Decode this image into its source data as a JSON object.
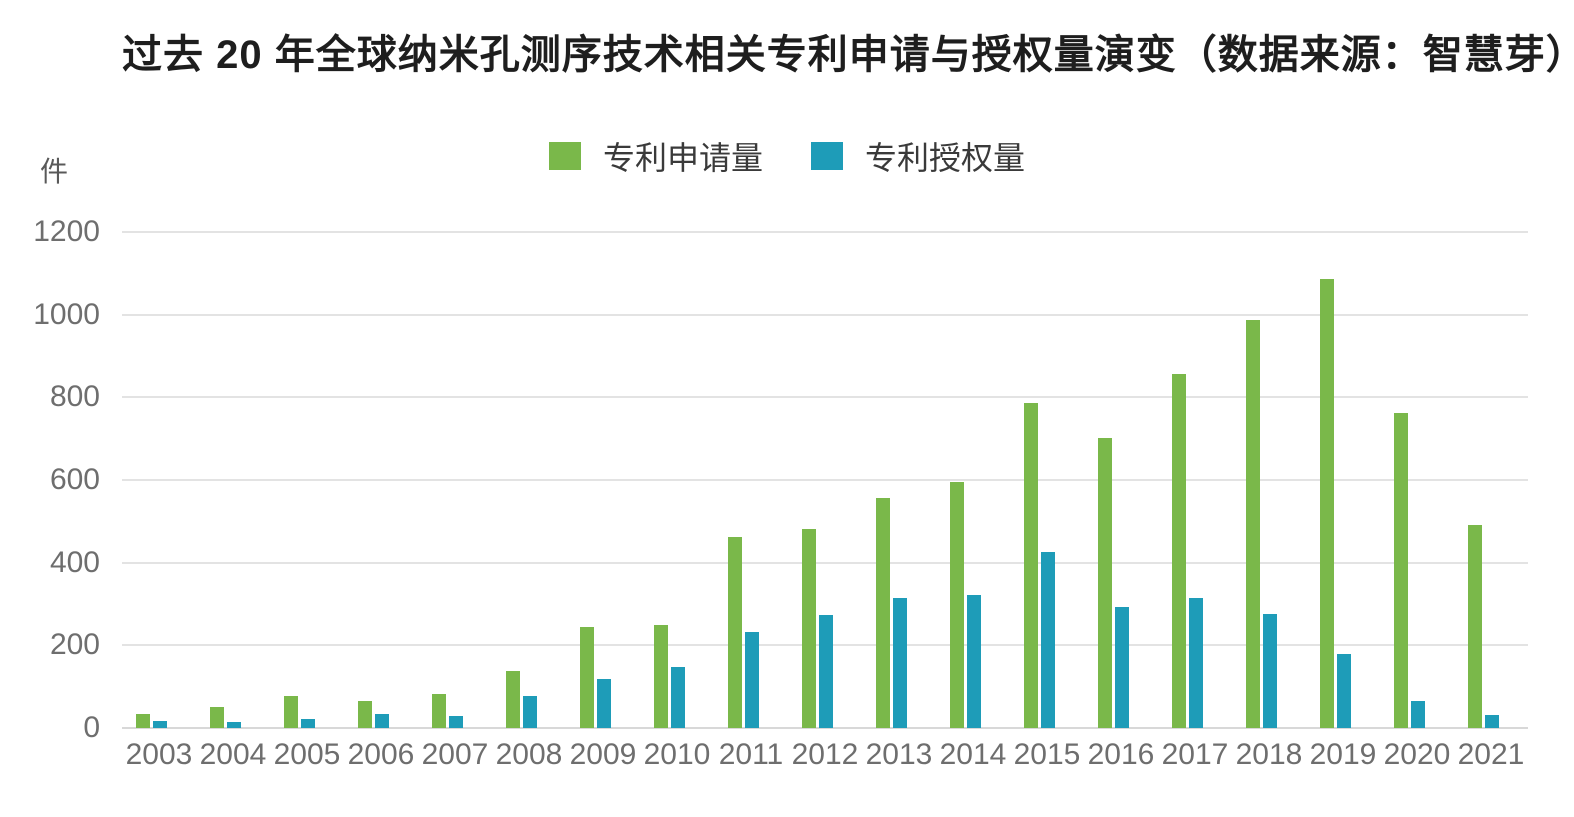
{
  "title": "过去 20 年全球纳米孔测序技术相关专利申请与授权量演变（数据来源：智慧芽）",
  "legend": {
    "items": [
      {
        "label": "专利申请量",
        "color": "#7ab84a"
      },
      {
        "label": "专利授权量",
        "color": "#1e9cb8"
      }
    ]
  },
  "y_axis": {
    "unit": "件",
    "ticks": [
      1200,
      1000,
      800,
      600,
      400,
      200,
      0
    ],
    "max": 1200
  },
  "chart_data": {
    "type": "bar",
    "title": "过去 20 年全球纳米孔测序技术相关专利申请与授权量演变（数据来源：智慧芽）",
    "categories": [
      "2003",
      "2004",
      "2005",
      "2006",
      "2007",
      "2008",
      "2009",
      "2010",
      "2011",
      "2012",
      "2013",
      "2014",
      "2015",
      "2016",
      "2017",
      "2018",
      "2019",
      "2020",
      "2021"
    ],
    "series": [
      {
        "name": "专利申请量",
        "color": "#7ab84a",
        "values": [
          35,
          52,
          78,
          66,
          82,
          138,
          245,
          250,
          462,
          482,
          557,
          596,
          786,
          701,
          857,
          986,
          1086,
          763,
          490
        ]
      },
      {
        "name": "专利授权量",
        "color": "#1e9cb8",
        "values": [
          16,
          14,
          22,
          34,
          28,
          77,
          118,
          147,
          233,
          274,
          315,
          323,
          425,
          293,
          315,
          275,
          179,
          66,
          32
        ]
      }
    ],
    "xlabel": "",
    "ylabel": "件",
    "ylim": [
      0,
      1200
    ],
    "grid": true,
    "legend_position": "top",
    "gridline_color": "#e3e3e3"
  }
}
